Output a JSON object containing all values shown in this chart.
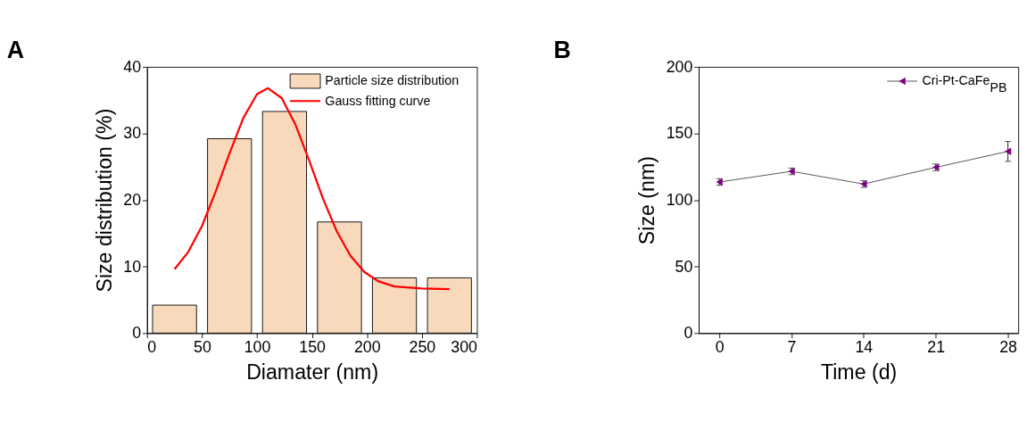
{
  "chart_data": [
    {
      "type": "bar",
      "title": "A",
      "xlabel": "Diamater (nm)",
      "ylabel": "Size distribution (%)",
      "xlim": [
        0,
        300
      ],
      "xticks": [
        0,
        50,
        100,
        150,
        200,
        250,
        300
      ],
      "ylim": [
        0,
        40
      ],
      "yticks": [
        0,
        10,
        20,
        30,
        40
      ],
      "legend": "top right",
      "series": [
        {
          "name": "Particle size distribution",
          "color": "#f9d9bc",
          "x": [
            25,
            75,
            125,
            175,
            225,
            275
          ],
          "values": [
            4.2,
            29.2,
            33.3,
            16.7,
            8.3,
            8.3
          ]
        },
        {
          "name": "Gauss fitting curve",
          "type": "line",
          "color": "#ff0000",
          "x": [
            25,
            37.5,
            50,
            62.5,
            75,
            87.5,
            100,
            110,
            122.5,
            135,
            147.5,
            160,
            172.5,
            185,
            197.5,
            210,
            225,
            250,
            275
          ],
          "values": [
            9.6,
            12.2,
            16.1,
            21.3,
            27.0,
            32.3,
            35.9,
            36.8,
            35.3,
            31.3,
            25.9,
            20.2,
            15.3,
            11.6,
            9.2,
            7.8,
            7.0,
            6.7,
            6.6
          ]
        }
      ]
    },
    {
      "type": "line",
      "title": "B",
      "xlabel": "Time (d)",
      "ylabel": "Size (nm)",
      "x": [
        0,
        7,
        14,
        21,
        28
      ],
      "xlim": [
        -2,
        29
      ],
      "xticks": [
        0,
        7,
        14,
        21,
        28
      ],
      "ylim": [
        0,
        200
      ],
      "yticks": [
        0,
        50,
        100,
        150,
        200
      ],
      "legend": "top right",
      "marker": "triangle",
      "series": [
        {
          "name": "Cri-Pt-CaFe$_{PB}$",
          "color": "#800080",
          "values": [
            113.5,
            121.5,
            112,
            124.5,
            136.5
          ],
          "errors": [
            2.5,
            2.5,
            2.5,
            2.5,
            7.5
          ]
        }
      ]
    }
  ]
}
